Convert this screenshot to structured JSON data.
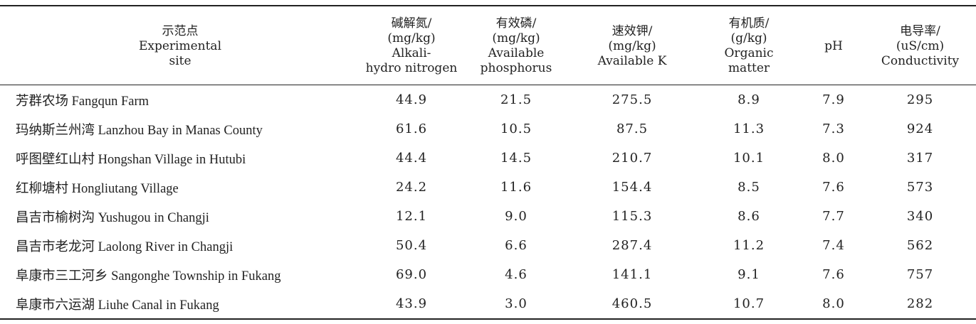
{
  "table": {
    "headers": [
      {
        "key": "site",
        "lines": [
          "示范点",
          "Experimental",
          "site"
        ]
      },
      {
        "key": "nitrogen",
        "lines": [
          "碱解氮/",
          "(mg/kg)",
          "Alkali-",
          "hydro nitrogen"
        ]
      },
      {
        "key": "phosphorus",
        "lines": [
          "有效磷/",
          "(mg/kg)",
          "Available",
          "phosphorus"
        ]
      },
      {
        "key": "potassium",
        "lines": [
          "速效钾/",
          "(mg/kg)",
          "Available K"
        ]
      },
      {
        "key": "organic",
        "lines": [
          "有机质/",
          "(g/kg)",
          "Organic",
          "matter"
        ]
      },
      {
        "key": "ph",
        "lines": [
          "pH"
        ]
      },
      {
        "key": "conductivity",
        "lines": [
          "电导率/",
          "(uS/cm)",
          "Conductivity"
        ]
      }
    ],
    "rows": [
      {
        "site": "芳群农场 Fangqun Farm",
        "nitrogen": "44.9",
        "phosphorus": "21.5",
        "potassium": "275.5",
        "organic": "8.9",
        "ph": "7.9",
        "conductivity": "295"
      },
      {
        "site": "玛纳斯兰州湾 Lanzhou Bay in Manas County",
        "nitrogen": "61.6",
        "phosphorus": "10.5",
        "potassium": "87.5",
        "organic": "11.3",
        "ph": "7.3",
        "conductivity": "924"
      },
      {
        "site": "呼图壁红山村 Hongshan Village in Hutubi",
        "nitrogen": "44.4",
        "phosphorus": "14.5",
        "potassium": "210.7",
        "organic": "10.1",
        "ph": "8.0",
        "conductivity": "317"
      },
      {
        "site": "红柳塘村 Hongliutang Village",
        "nitrogen": "24.2",
        "phosphorus": "11.6",
        "potassium": "154.4",
        "organic": "8.5",
        "ph": "7.6",
        "conductivity": "573"
      },
      {
        "site": "昌吉市榆树沟 Yushugou in Changji",
        "nitrogen": "12.1",
        "phosphorus": "9.0",
        "potassium": "115.3",
        "organic": "8.6",
        "ph": "7.7",
        "conductivity": "340"
      },
      {
        "site": "昌吉市老龙河 Laolong River in Changji",
        "nitrogen": "50.4",
        "phosphorus": "6.6",
        "potassium": "287.4",
        "organic": "11.2",
        "ph": "7.4",
        "conductivity": "562"
      },
      {
        "site": "阜康市三工河乡 Sangonghe Township in Fukang",
        "nitrogen": "69.0",
        "phosphorus": "4.6",
        "potassium": "141.1",
        "organic": "9.1",
        "ph": "7.6",
        "conductivity": "757"
      },
      {
        "site": "阜康市六运湖 Liuhe Canal in Fukang",
        "nitrogen": "43.9",
        "phosphorus": "3.0",
        "potassium": "460.5",
        "organic": "10.7",
        "ph": "8.0",
        "conductivity": "282"
      }
    ]
  }
}
